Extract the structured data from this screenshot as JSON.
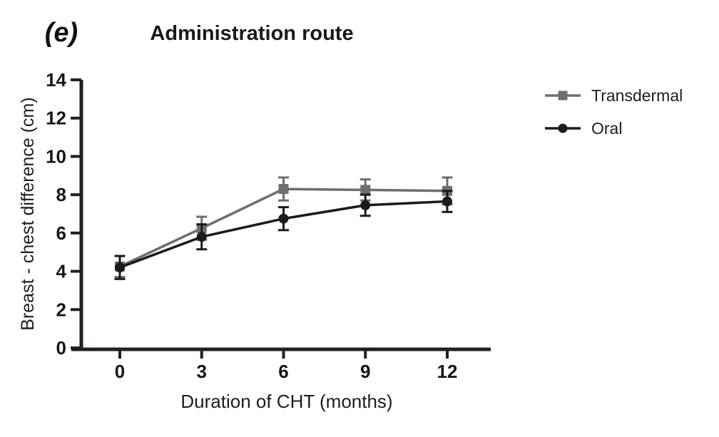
{
  "figure": {
    "panel_label": "(e)"
  },
  "chart_data": {
    "type": "line",
    "title": "Administration route",
    "panel_label": "(e)",
    "xlabel": "Duration of CHT (months)",
    "ylabel": "Breast - chest difference (cm)",
    "x": [
      0,
      3,
      6,
      9,
      12
    ],
    "xticks": [
      0,
      3,
      6,
      9,
      12
    ],
    "yticks": [
      0,
      2,
      4,
      6,
      8,
      10,
      12,
      14
    ],
    "xlim": [
      -1.8,
      13.6
    ],
    "ylim": [
      0,
      14
    ],
    "grid": false,
    "legend_position": "right",
    "error_bars": "symmetric",
    "axis_color": "#231f20",
    "series": [
      {
        "name": "Transdermal",
        "marker": "square",
        "color": "#6e6e6e",
        "values": [
          4.25,
          6.25,
          8.3,
          8.25,
          8.2
        ],
        "errors": [
          0.55,
          0.6,
          0.6,
          0.55,
          0.7
        ]
      },
      {
        "name": "Oral",
        "marker": "circle",
        "color": "#1b1b1b",
        "values": [
          4.2,
          5.8,
          6.75,
          7.45,
          7.65
        ],
        "errors": [
          0.6,
          0.65,
          0.6,
          0.55,
          0.55
        ]
      }
    ]
  }
}
